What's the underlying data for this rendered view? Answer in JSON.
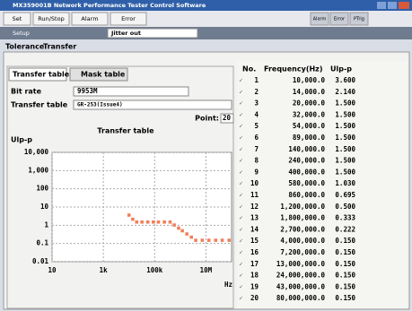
{
  "window": {
    "title": "MX359001B Network Performance Tester Control Software"
  },
  "toolbar": {
    "buttons": [
      "Set",
      "Run/Stop",
      "Alarm",
      "Error"
    ],
    "status": [
      "Alarm",
      "Error",
      "PTrig"
    ]
  },
  "setup": {
    "label": "Setup",
    "value": "Jitter out"
  },
  "tabs": [
    "Tolerance",
    "Transfer"
  ],
  "subtabs": [
    "Transfer table",
    "Mask table"
  ],
  "fields": {
    "bit_rate_label": "Bit rate",
    "bit_rate": "9953M",
    "table_label": "Transfer table",
    "table": "GR-253(Issue4)",
    "point_label": "Point:",
    "point": "20"
  },
  "table": {
    "header": [
      "No.",
      "Frequency(Hz)",
      "Ulp-p"
    ],
    "rows": [
      [
        "1",
        "10,000.0",
        "3.600"
      ],
      [
        "2",
        "14,000.0",
        "2.140"
      ],
      [
        "3",
        "20,000.0",
        "1.500"
      ],
      [
        "4",
        "32,000.0",
        "1.500"
      ],
      [
        "5",
        "54,000.0",
        "1.500"
      ],
      [
        "6",
        "89,000.0",
        "1.500"
      ],
      [
        "7",
        "140,000.0",
        "1.500"
      ],
      [
        "8",
        "240,000.0",
        "1.500"
      ],
      [
        "9",
        "400,000.0",
        "1.500"
      ],
      [
        "10",
        "580,000.0",
        "1.030"
      ],
      [
        "11",
        "860,000.0",
        "0.695"
      ],
      [
        "12",
        "1,200,000.0",
        "0.500"
      ],
      [
        "13",
        "1,800,000.0",
        "0.333"
      ],
      [
        "14",
        "2,700,000.0",
        "0.222"
      ],
      [
        "15",
        "4,000,000.0",
        "0.150"
      ],
      [
        "16",
        "7,200,000.0",
        "0.150"
      ],
      [
        "17",
        "13,000,000.0",
        "0.150"
      ],
      [
        "18",
        "24,000,000.0",
        "0.150"
      ],
      [
        "19",
        "43,000,000.0",
        "0.150"
      ],
      [
        "20",
        "80,000,000.0",
        "0.150"
      ]
    ]
  },
  "chart": {
    "type": "scatter",
    "title": "Transfer table",
    "y_label": "Ulp-p",
    "x_unit": "Hz",
    "x": [
      10000,
      14000,
      20000,
      32000,
      54000,
      89000,
      140000,
      240000,
      400000,
      580000,
      860000,
      1200000,
      1800000,
      2700000,
      4000000,
      7200000,
      13000000,
      24000000,
      43000000,
      80000000
    ],
    "values": [
      3.6,
      2.14,
      1.5,
      1.5,
      1.5,
      1.5,
      1.5,
      1.5,
      1.5,
      1.03,
      0.695,
      0.5,
      0.333,
      0.222,
      0.15,
      0.15,
      0.15,
      0.15,
      0.15,
      0.15
    ],
    "color": "#f07f5a",
    "log_x": true,
    "log_y": true,
    "grid": true,
    "xlim": [
      10,
      100000000
    ],
    "ylim": [
      0.01,
      10000
    ],
    "xticks": [
      10,
      {
        "value": 1000,
        "label": "1k"
      },
      {
        "value": 100000,
        "label": "100k"
      },
      {
        "value": 10000000,
        "label": "10M"
      }
    ],
    "yticks": [
      {
        "value": 10000,
        "label": "10,000"
      },
      {
        "value": 1000,
        "label": "1,000"
      },
      100,
      10,
      1,
      0.1,
      0.01
    ]
  }
}
